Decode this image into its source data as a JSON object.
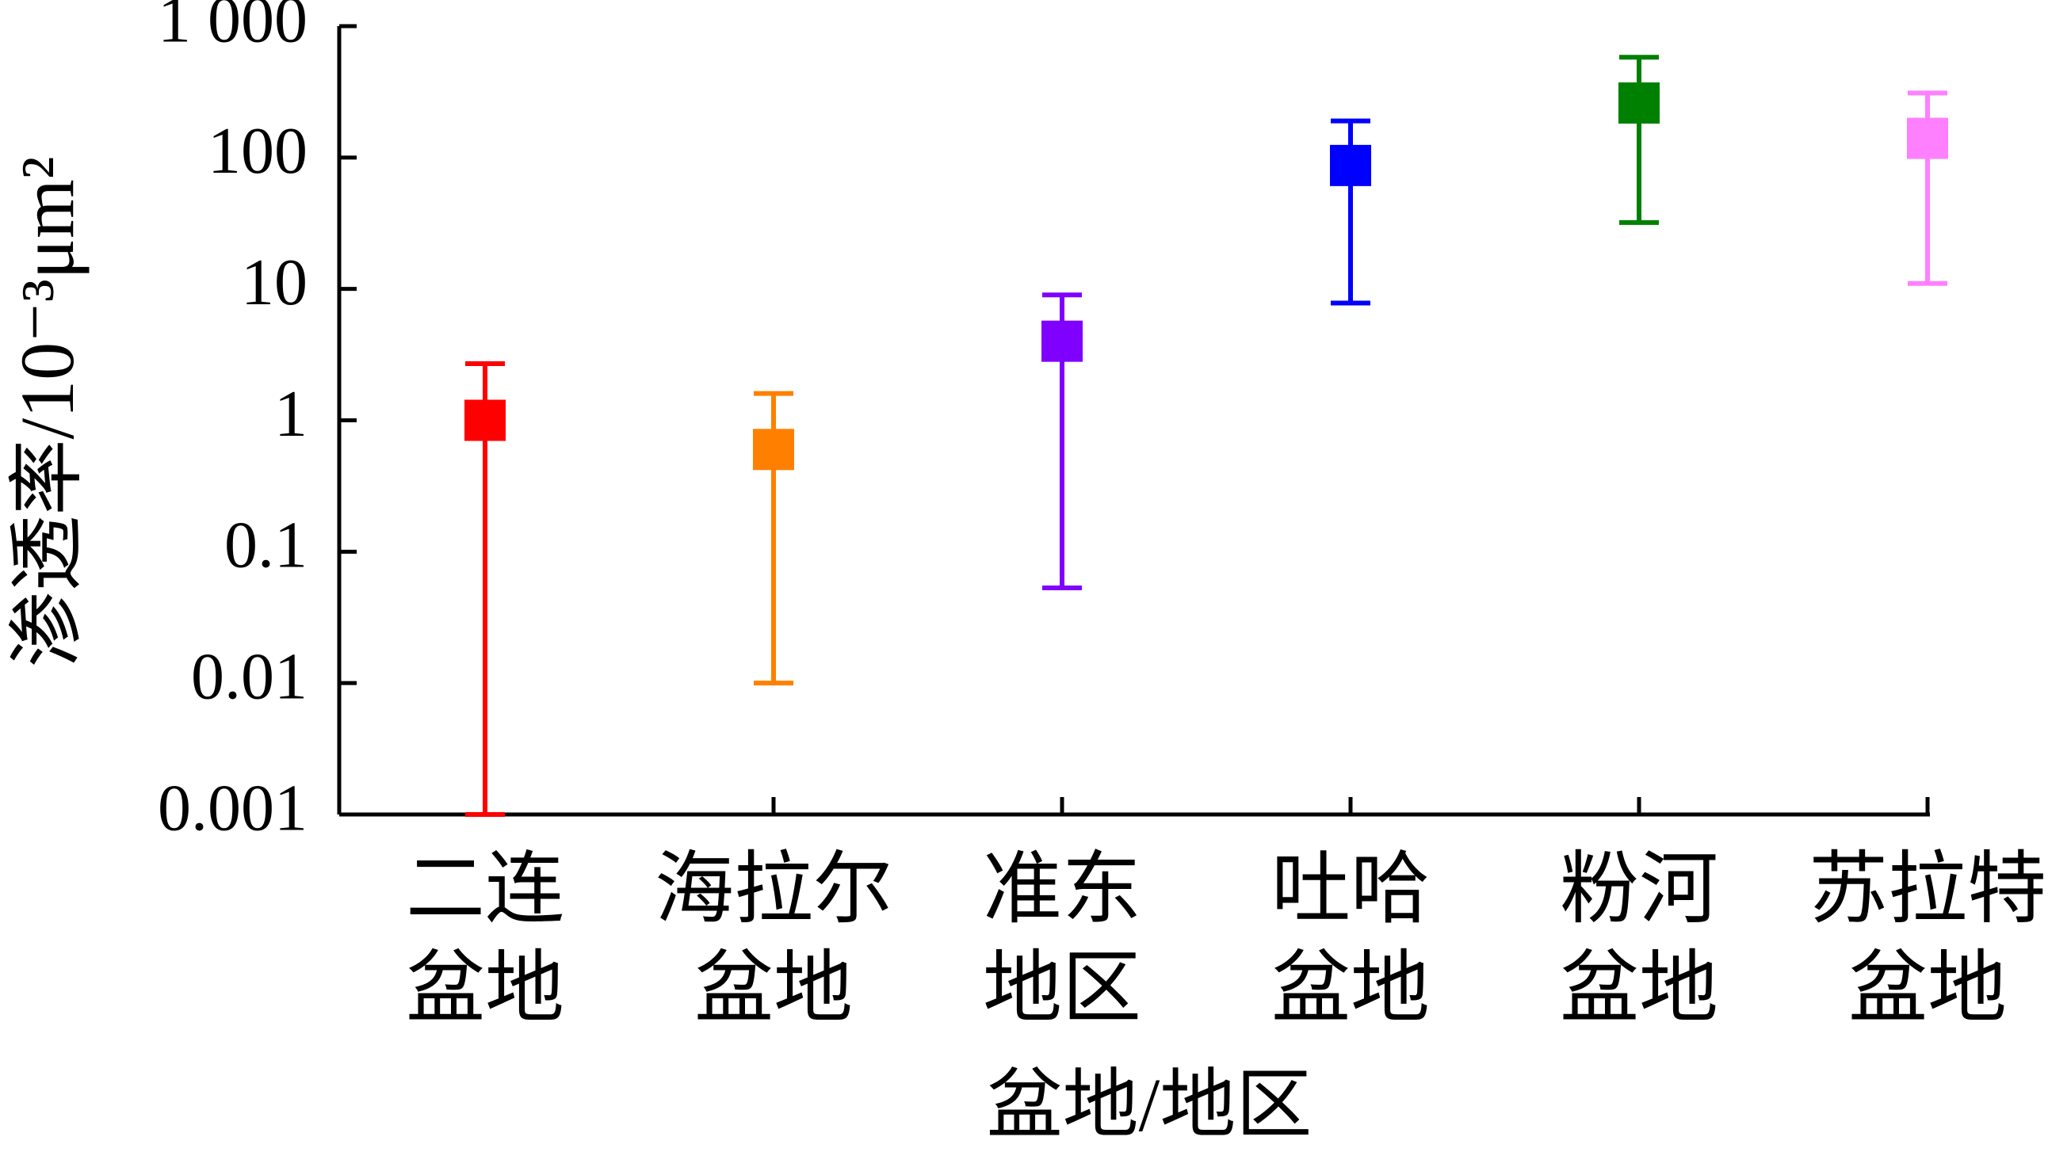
{
  "chart_data": {
    "type": "errorbar",
    "categories": [
      [
        "二连",
        "盆地"
      ],
      [
        "海拉尔",
        "盆地"
      ],
      [
        "准东",
        "地区"
      ],
      [
        "吐哈",
        "盆地"
      ],
      [
        "粉河",
        "盆地"
      ],
      [
        "苏拉特",
        "盆地"
      ]
    ],
    "values": [
      1.0,
      0.6,
      4,
      87,
      260,
      140
    ],
    "low": [
      0.001,
      0.01,
      0.053,
      7.8,
      32,
      11
    ],
    "high": [
      2.7,
      1.6,
      9,
      190,
      580,
      310
    ],
    "colors": [
      "#ff0000",
      "#ff8000",
      "#8000ff",
      "#0000ff",
      "#008000",
      "#ff80ff"
    ],
    "ylog": true,
    "ylim": [
      0.001,
      1000
    ],
    "yticks": [
      0.001,
      0.01,
      0.1,
      1,
      10,
      100,
      {
        "value": 1000,
        "label": "1 000"
      }
    ],
    "xlabel": "盆地/地区",
    "ylabel": "渗透率/10⁻³μm²"
  }
}
